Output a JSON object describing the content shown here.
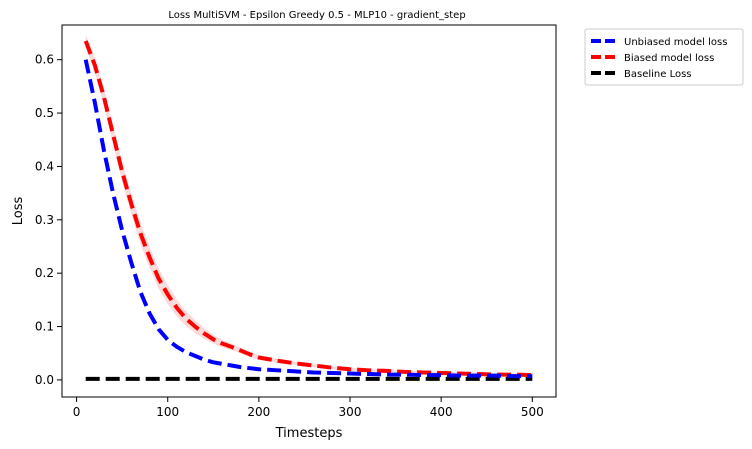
{
  "chart_data": {
    "type": "line",
    "title": "Loss MultiSVM - Epsilon Greedy 0.5 - MLP10 - gradient_step",
    "xlabel": "Timesteps",
    "ylabel": "Loss",
    "xlim": [
      -16,
      526
    ],
    "ylim": [
      -0.032,
      0.665
    ],
    "xticks": [
      0,
      100,
      200,
      300,
      400,
      500
    ],
    "yticks": [
      0.0,
      0.1,
      0.2,
      0.3,
      0.4,
      0.5,
      0.6
    ],
    "grid": false,
    "legend_placement": "outside-top-right",
    "series": [
      {
        "name": "Unbiased model loss",
        "color": "#0000ff",
        "linestyle": "dashed",
        "x": [
          10,
          20,
          30,
          40,
          50,
          60,
          70,
          80,
          90,
          100,
          110,
          120,
          130,
          140,
          150,
          160,
          170,
          180,
          190,
          200,
          210,
          220,
          240,
          260,
          280,
          300,
          320,
          340,
          360,
          380,
          400,
          420,
          440,
          460,
          480,
          500
        ],
        "values": [
          0.6,
          0.52,
          0.43,
          0.35,
          0.28,
          0.22,
          0.165,
          0.125,
          0.095,
          0.075,
          0.062,
          0.052,
          0.045,
          0.038,
          0.033,
          0.03,
          0.027,
          0.024,
          0.022,
          0.02,
          0.019,
          0.018,
          0.016,
          0.014,
          0.013,
          0.012,
          0.011,
          0.01,
          0.01,
          0.009,
          0.009,
          0.008,
          0.008,
          0.008,
          0.007,
          0.007
        ]
      },
      {
        "name": "Biased model loss",
        "color": "#ff0000",
        "band_color": "#f7b6b6",
        "linestyle": "dashed",
        "x": [
          10,
          20,
          30,
          40,
          50,
          60,
          70,
          80,
          90,
          100,
          110,
          120,
          130,
          140,
          150,
          160,
          170,
          180,
          190,
          200,
          220,
          240,
          260,
          280,
          300,
          320,
          340,
          360,
          380,
          400,
          420,
          440,
          460,
          480,
          500
        ],
        "values": [
          0.635,
          0.59,
          0.53,
          0.46,
          0.39,
          0.33,
          0.275,
          0.23,
          0.19,
          0.16,
          0.135,
          0.115,
          0.1,
          0.087,
          0.076,
          0.068,
          0.062,
          0.055,
          0.048,
          0.042,
          0.036,
          0.031,
          0.027,
          0.023,
          0.02,
          0.018,
          0.017,
          0.015,
          0.014,
          0.013,
          0.012,
          0.011,
          0.01,
          0.01,
          0.009
        ],
        "band_halfwidth": [
          0.012,
          0.014,
          0.016,
          0.017,
          0.018,
          0.019,
          0.02,
          0.02,
          0.019,
          0.018,
          0.016,
          0.014,
          0.012,
          0.01,
          0.008,
          0.007,
          0.006,
          0.005,
          0.005,
          0.004,
          0.004,
          0.003,
          0.003,
          0.003,
          0.003,
          0.002,
          0.002,
          0.002,
          0.002,
          0.002,
          0.002,
          0.002,
          0.002,
          0.002,
          0.002
        ]
      },
      {
        "name": "Baseline Loss",
        "color": "#000000",
        "linestyle": "dashed",
        "x": [
          10,
          500
        ],
        "values": [
          0.002,
          0.002
        ]
      }
    ]
  }
}
